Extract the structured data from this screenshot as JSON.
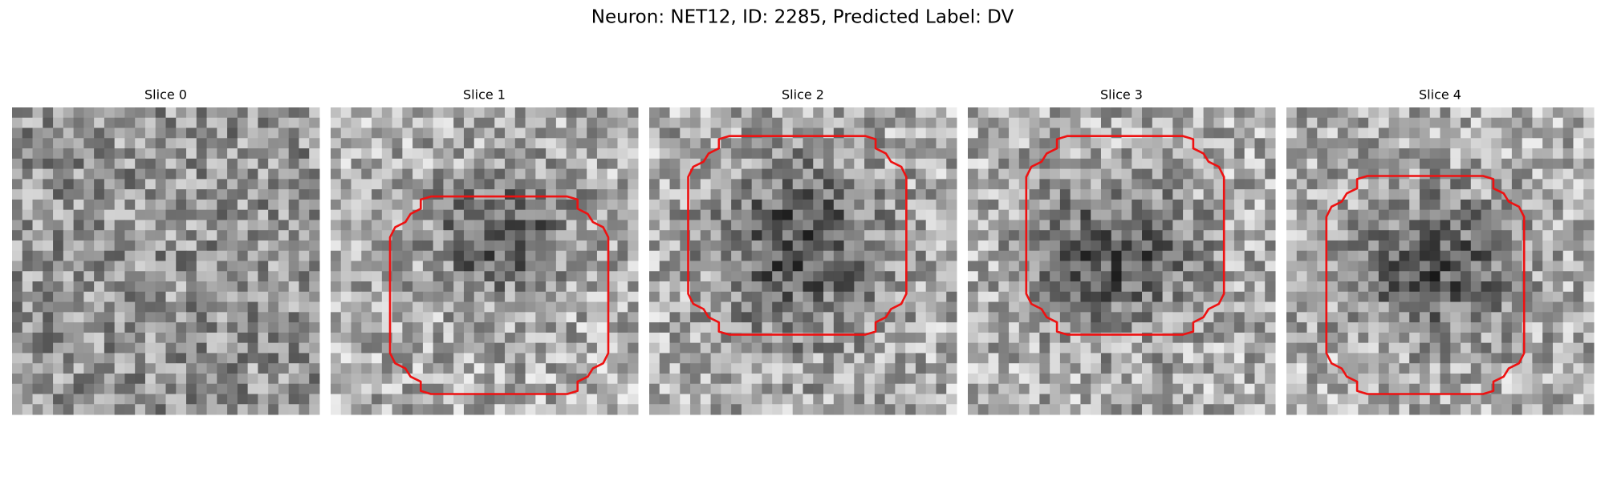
{
  "title": "Neuron: NET12, ID: 2285, Predicted Label: DV",
  "panels": [
    {
      "title": "Slice 0"
    },
    {
      "title": "Slice 1"
    },
    {
      "title": "Slice 2"
    },
    {
      "title": "Slice 3"
    },
    {
      "title": "Slice 4"
    }
  ]
}
